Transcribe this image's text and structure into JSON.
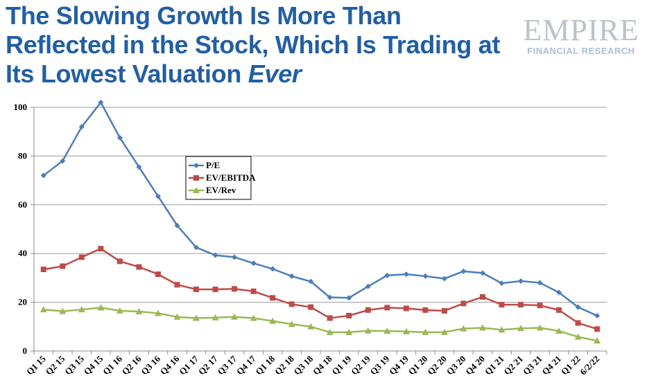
{
  "title_parts": [
    "The Slowing Growth Is More Than Reflected in the Stock, Which Is Trading at Its Lowest Valuation ",
    "Ever"
  ],
  "logo": {
    "name": "EMPIRE",
    "sub": "FINANCIAL RESEARCH"
  },
  "chart_data": {
    "type": "line",
    "title": "The Slowing Growth Is More Than Reflected in the Stock, Which Is Trading at Its Lowest Valuation Ever",
    "categories": [
      "Q1 15",
      "Q2 15",
      "Q3 15",
      "Q4 15",
      "Q1 16",
      "Q2 16",
      "Q3 16",
      "Q4 16",
      "Q1 17",
      "Q2 17",
      "Q3 17",
      "Q4 17",
      "Q1 18",
      "Q2 18",
      "Q3 18",
      "Q4 18",
      "Q1 19",
      "Q2 19",
      "Q3 19",
      "Q4 19",
      "Q1 20",
      "Q2 20",
      "Q3 20",
      "Q4 20",
      "Q1 21",
      "Q2 21",
      "Q3 21",
      "Q4 21",
      "Q1 22",
      "6/2/22"
    ],
    "ylim": [
      0,
      100
    ],
    "yticks": [
      "0",
      "20",
      "40",
      "60",
      "80",
      "100"
    ],
    "grid": true,
    "legend_placement": "upper-center",
    "series": [
      {
        "name": "P/E",
        "color": "#4a7ebb",
        "marker": "diamond",
        "values": [
          72,
          78,
          92,
          102,
          87.5,
          75.5,
          63.5,
          51.5,
          42.5,
          39.3,
          38.5,
          36,
          33.7,
          30.7,
          28.5,
          22,
          21.8,
          26.5,
          31,
          31.5,
          30.7,
          29.7,
          32.7,
          32,
          27.8,
          28.7,
          28,
          24,
          18,
          14.5
        ]
      },
      {
        "name": "EV/EBITDA",
        "color": "#be4b48",
        "marker": "square",
        "values": [
          33.5,
          34.8,
          38.5,
          42,
          36.8,
          34.5,
          31.5,
          27.2,
          25.3,
          25.3,
          25.5,
          24.5,
          21.8,
          19.2,
          18,
          13.5,
          14.5,
          16.8,
          17.8,
          17.5,
          16.8,
          16.5,
          19.5,
          22.2,
          19,
          19,
          18.7,
          16.8,
          11.5,
          9
        ]
      },
      {
        "name": "EV/Rev",
        "color": "#98b954",
        "marker": "triangle",
        "values": [
          17,
          16.3,
          17,
          17.8,
          16.5,
          16.2,
          15.5,
          14,
          13.5,
          13.7,
          14,
          13.5,
          12.3,
          11,
          10,
          7.7,
          7.7,
          8.3,
          8.2,
          8,
          7.7,
          7.7,
          9.2,
          9.5,
          8.7,
          9.3,
          9.5,
          8.2,
          5.8,
          4.2
        ]
      }
    ]
  }
}
